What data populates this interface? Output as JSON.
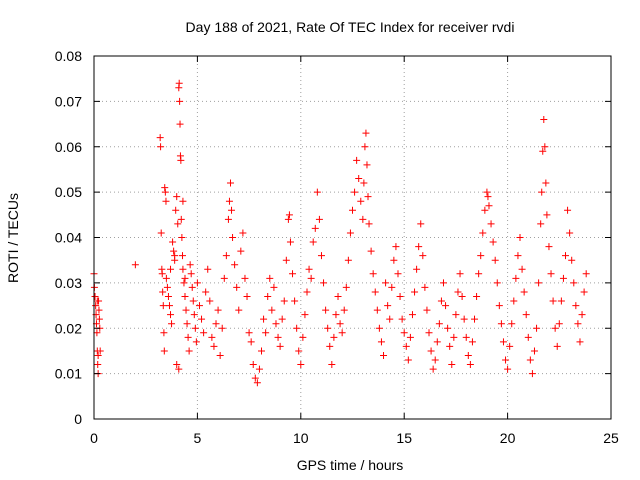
{
  "chart_data": {
    "type": "scatter",
    "title": "Day 188 of 2021, Rate Of TEC Index for receiver rvdi",
    "xlabel": "GPS time / hours",
    "ylabel": "ROTI / TECUs",
    "xlim": [
      0,
      25
    ],
    "ylim": [
      0,
      0.08
    ],
    "x_ticks": [
      "0",
      "5",
      "10",
      "15",
      "20",
      "25"
    ],
    "y_ticks": [
      "0",
      "0.01",
      "0.02",
      "0.03",
      "0.04",
      "0.05",
      "0.06",
      "0.07",
      "0.08"
    ],
    "grid": true,
    "legend": "none",
    "marker": "plus",
    "color": "#ff0000",
    "points": [
      [
        0.0,
        0.032
      ],
      [
        0.02,
        0.029
      ],
      [
        0.05,
        0.027
      ],
      [
        0.08,
        0.025
      ],
      [
        0.1,
        0.023
      ],
      [
        0.12,
        0.021
      ],
      [
        0.14,
        0.019
      ],
      [
        0.16,
        0.015
      ],
      [
        0.18,
        0.012
      ],
      [
        0.2,
        0.01
      ],
      [
        0.22,
        0.026
      ],
      [
        0.24,
        0.024
      ],
      [
        0.26,
        0.022
      ],
      [
        0.28,
        0.02
      ],
      [
        0.3,
        0.015
      ],
      [
        0.16,
        0.026
      ],
      [
        0.2,
        0.014
      ],
      [
        2.0,
        0.034
      ],
      [
        3.2,
        0.062
      ],
      [
        3.22,
        0.06
      ],
      [
        3.25,
        0.041
      ],
      [
        3.28,
        0.033
      ],
      [
        3.3,
        0.032
      ],
      [
        3.32,
        0.028
      ],
      [
        3.35,
        0.025
      ],
      [
        3.38,
        0.019
      ],
      [
        3.4,
        0.015
      ],
      [
        3.42,
        0.051
      ],
      [
        3.45,
        0.05
      ],
      [
        3.48,
        0.048
      ],
      [
        3.5,
        0.031
      ],
      [
        3.55,
        0.029
      ],
      [
        3.6,
        0.027
      ],
      [
        3.65,
        0.025
      ],
      [
        3.7,
        0.023
      ],
      [
        3.75,
        0.021
      ],
      [
        3.8,
        0.039
      ],
      [
        3.85,
        0.037
      ],
      [
        3.9,
        0.035
      ],
      [
        3.95,
        0.046
      ],
      [
        4.0,
        0.049
      ],
      [
        4.05,
        0.043
      ],
      [
        4.1,
        0.073
      ],
      [
        4.12,
        0.074
      ],
      [
        4.14,
        0.07
      ],
      [
        4.16,
        0.065
      ],
      [
        4.18,
        0.058
      ],
      [
        4.2,
        0.057
      ],
      [
        4.22,
        0.044
      ],
      [
        4.25,
        0.04
      ],
      [
        4.28,
        0.036
      ],
      [
        4.3,
        0.033
      ],
      [
        4.35,
        0.03
      ],
      [
        4.4,
        0.027
      ],
      [
        4.45,
        0.024
      ],
      [
        4.5,
        0.021
      ],
      [
        4.55,
        0.018
      ],
      [
        4.6,
        0.015
      ],
      [
        4.65,
        0.034
      ],
      [
        4.7,
        0.032
      ],
      [
        4.75,
        0.029
      ],
      [
        4.8,
        0.026
      ],
      [
        4.85,
        0.023
      ],
      [
        4.9,
        0.02
      ],
      [
        4.95,
        0.017
      ],
      [
        4.0,
        0.012
      ],
      [
        4.1,
        0.011
      ],
      [
        3.9,
        0.036
      ],
      [
        3.7,
        0.033
      ],
      [
        4.3,
        0.048
      ],
      [
        4.4,
        0.031
      ],
      [
        5.0,
        0.03
      ],
      [
        5.1,
        0.025
      ],
      [
        5.2,
        0.022
      ],
      [
        5.3,
        0.019
      ],
      [
        5.4,
        0.028
      ],
      [
        5.5,
        0.033
      ],
      [
        5.6,
        0.026
      ],
      [
        5.7,
        0.018
      ],
      [
        5.8,
        0.016
      ],
      [
        5.9,
        0.021
      ],
      [
        6.0,
        0.024
      ],
      [
        6.1,
        0.014
      ],
      [
        6.2,
        0.02
      ],
      [
        6.3,
        0.031
      ],
      [
        6.4,
        0.036
      ],
      [
        6.5,
        0.044
      ],
      [
        6.55,
        0.048
      ],
      [
        6.6,
        0.052
      ],
      [
        6.65,
        0.046
      ],
      [
        6.7,
        0.04
      ],
      [
        6.8,
        0.034
      ],
      [
        6.9,
        0.029
      ],
      [
        7.0,
        0.024
      ],
      [
        7.1,
        0.037
      ],
      [
        7.2,
        0.041
      ],
      [
        7.3,
        0.031
      ],
      [
        7.4,
        0.027
      ],
      [
        7.5,
        0.019
      ],
      [
        7.6,
        0.017
      ],
      [
        7.7,
        0.012
      ],
      [
        7.8,
        0.009
      ],
      [
        7.9,
        0.008
      ],
      [
        8.0,
        0.011
      ],
      [
        8.1,
        0.015
      ],
      [
        8.2,
        0.022
      ],
      [
        8.3,
        0.019
      ],
      [
        8.4,
        0.027
      ],
      [
        8.5,
        0.031
      ],
      [
        8.6,
        0.024
      ],
      [
        8.7,
        0.029
      ],
      [
        8.8,
        0.021
      ],
      [
        8.9,
        0.018
      ],
      [
        9.0,
        0.016
      ],
      [
        9.1,
        0.022
      ],
      [
        9.2,
        0.026
      ],
      [
        9.3,
        0.035
      ],
      [
        9.4,
        0.044
      ],
      [
        9.45,
        0.045
      ],
      [
        9.5,
        0.039
      ],
      [
        9.6,
        0.032
      ],
      [
        9.7,
        0.026
      ],
      [
        9.8,
        0.02
      ],
      [
        9.9,
        0.015
      ],
      [
        10.0,
        0.012
      ],
      [
        10.1,
        0.018
      ],
      [
        10.2,
        0.023
      ],
      [
        10.3,
        0.028
      ],
      [
        10.4,
        0.033
      ],
      [
        10.5,
        0.031
      ],
      [
        10.6,
        0.039
      ],
      [
        10.7,
        0.042
      ],
      [
        10.8,
        0.05
      ],
      [
        10.9,
        0.044
      ],
      [
        11.0,
        0.036
      ],
      [
        11.1,
        0.03
      ],
      [
        11.2,
        0.024
      ],
      [
        11.3,
        0.02
      ],
      [
        11.4,
        0.016
      ],
      [
        11.5,
        0.012
      ],
      [
        11.6,
        0.018
      ],
      [
        11.7,
        0.023
      ],
      [
        11.8,
        0.027
      ],
      [
        11.9,
        0.021
      ],
      [
        12.0,
        0.019
      ],
      [
        12.1,
        0.024
      ],
      [
        12.2,
        0.029
      ],
      [
        12.3,
        0.035
      ],
      [
        12.4,
        0.041
      ],
      [
        12.5,
        0.046
      ],
      [
        12.6,
        0.05
      ],
      [
        12.7,
        0.057
      ],
      [
        12.8,
        0.053
      ],
      [
        12.9,
        0.048
      ],
      [
        13.0,
        0.044
      ],
      [
        13.05,
        0.052
      ],
      [
        13.1,
        0.06
      ],
      [
        13.15,
        0.063
      ],
      [
        13.2,
        0.056
      ],
      [
        13.25,
        0.049
      ],
      [
        13.3,
        0.043
      ],
      [
        13.4,
        0.037
      ],
      [
        13.5,
        0.032
      ],
      [
        13.6,
        0.028
      ],
      [
        13.7,
        0.024
      ],
      [
        13.8,
        0.02
      ],
      [
        13.9,
        0.017
      ],
      [
        14.0,
        0.014
      ],
      [
        14.1,
        0.03
      ],
      [
        14.2,
        0.025
      ],
      [
        14.3,
        0.022
      ],
      [
        14.4,
        0.029
      ],
      [
        14.5,
        0.035
      ],
      [
        14.6,
        0.038
      ],
      [
        14.7,
        0.032
      ],
      [
        14.8,
        0.027
      ],
      [
        14.9,
        0.022
      ],
      [
        15.0,
        0.019
      ],
      [
        15.1,
        0.016
      ],
      [
        15.2,
        0.013
      ],
      [
        15.3,
        0.018
      ],
      [
        15.4,
        0.023
      ],
      [
        15.5,
        0.028
      ],
      [
        15.6,
        0.033
      ],
      [
        15.7,
        0.038
      ],
      [
        15.8,
        0.043
      ],
      [
        15.9,
        0.036
      ],
      [
        16.0,
        0.029
      ],
      [
        16.1,
        0.024
      ],
      [
        16.2,
        0.019
      ],
      [
        16.3,
        0.015
      ],
      [
        16.4,
        0.011
      ],
      [
        16.5,
        0.013
      ],
      [
        16.6,
        0.017
      ],
      [
        16.7,
        0.021
      ],
      [
        16.8,
        0.026
      ],
      [
        16.9,
        0.03
      ],
      [
        17.0,
        0.025
      ],
      [
        17.1,
        0.02
      ],
      [
        17.2,
        0.016
      ],
      [
        17.3,
        0.012
      ],
      [
        17.4,
        0.018
      ],
      [
        17.5,
        0.023
      ],
      [
        17.6,
        0.028
      ],
      [
        17.7,
        0.032
      ],
      [
        17.8,
        0.027
      ],
      [
        17.9,
        0.022
      ],
      [
        18.0,
        0.018
      ],
      [
        18.1,
        0.014
      ],
      [
        18.2,
        0.012
      ],
      [
        18.3,
        0.017
      ],
      [
        18.4,
        0.022
      ],
      [
        18.5,
        0.027
      ],
      [
        18.6,
        0.032
      ],
      [
        18.7,
        0.036
      ],
      [
        18.8,
        0.041
      ],
      [
        18.9,
        0.046
      ],
      [
        19.0,
        0.05
      ],
      [
        19.05,
        0.049
      ],
      [
        19.1,
        0.047
      ],
      [
        19.2,
        0.043
      ],
      [
        19.3,
        0.039
      ],
      [
        19.4,
        0.035
      ],
      [
        19.5,
        0.03
      ],
      [
        19.6,
        0.025
      ],
      [
        19.7,
        0.021
      ],
      [
        19.8,
        0.017
      ],
      [
        19.9,
        0.013
      ],
      [
        20.0,
        0.011
      ],
      [
        20.1,
        0.016
      ],
      [
        20.2,
        0.021
      ],
      [
        20.3,
        0.026
      ],
      [
        20.4,
        0.031
      ],
      [
        20.5,
        0.036
      ],
      [
        20.6,
        0.04
      ],
      [
        20.7,
        0.033
      ],
      [
        20.8,
        0.028
      ],
      [
        20.9,
        0.023
      ],
      [
        21.0,
        0.018
      ],
      [
        21.1,
        0.013
      ],
      [
        21.2,
        0.01
      ],
      [
        21.3,
        0.015
      ],
      [
        21.4,
        0.02
      ],
      [
        21.5,
        0.03
      ],
      [
        21.6,
        0.043
      ],
      [
        21.65,
        0.05
      ],
      [
        21.7,
        0.059
      ],
      [
        21.75,
        0.066
      ],
      [
        21.8,
        0.06
      ],
      [
        21.85,
        0.052
      ],
      [
        21.9,
        0.045
      ],
      [
        22.0,
        0.038
      ],
      [
        22.1,
        0.032
      ],
      [
        22.2,
        0.026
      ],
      [
        22.3,
        0.02
      ],
      [
        22.4,
        0.016
      ],
      [
        22.5,
        0.021
      ],
      [
        22.6,
        0.026
      ],
      [
        22.7,
        0.031
      ],
      [
        22.8,
        0.036
      ],
      [
        22.9,
        0.046
      ],
      [
        23.0,
        0.041
      ],
      [
        23.1,
        0.035
      ],
      [
        23.2,
        0.03
      ],
      [
        23.3,
        0.025
      ],
      [
        23.4,
        0.021
      ],
      [
        23.5,
        0.017
      ],
      [
        23.6,
        0.023
      ],
      [
        23.7,
        0.028
      ],
      [
        23.8,
        0.032
      ]
    ]
  }
}
